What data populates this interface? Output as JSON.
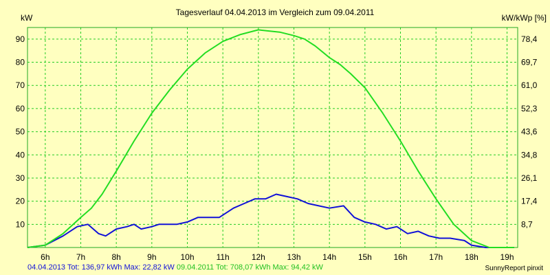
{
  "chart_data": {
    "type": "line",
    "title": "Tagesverlauf 04.04.2013 im Vergleich zum 09.04.2011",
    "ylabel_left": "kW",
    "ylabel_right": "kW/kWp [%]",
    "x_ticks": [
      "6h",
      "7h",
      "8h",
      "9h",
      "10h",
      "11h",
      "12h",
      "13h",
      "14h",
      "15h",
      "16h",
      "17h",
      "18h",
      "19h"
    ],
    "x_tick_values": [
      6,
      7,
      8,
      9,
      10,
      11,
      12,
      13,
      14,
      15,
      16,
      17,
      18,
      19
    ],
    "xlim": [
      5.5,
      19.3
    ],
    "ylim": [
      0,
      95
    ],
    "y_ticks_left": [
      "10",
      "20",
      "30",
      "40",
      "50",
      "60",
      "70",
      "80",
      "90"
    ],
    "y_tick_values_left": [
      10,
      20,
      30,
      40,
      50,
      60,
      70,
      80,
      90
    ],
    "y_ticks_right": [
      "8,7",
      "17,4",
      "26,1",
      "34,8",
      "43,6",
      "52,3",
      "61,0",
      "69,7",
      "78,4"
    ],
    "grid": true,
    "colors": {
      "background": "#ffffc0",
      "plot_background": "#ffffc0",
      "grid": "#22cc22",
      "series1": "#1010d8",
      "series2": "#22dd22"
    },
    "series": [
      {
        "name": "04.04.2013",
        "color": "#1010d8",
        "x": [
          5.5,
          6.0,
          6.5,
          6.9,
          7.2,
          7.5,
          7.7,
          8.0,
          8.3,
          8.5,
          8.7,
          9.0,
          9.2,
          9.5,
          9.7,
          10.0,
          10.3,
          10.6,
          10.9,
          11.3,
          11.6,
          11.9,
          12.2,
          12.5,
          12.8,
          13.1,
          13.4,
          13.7,
          14.0,
          14.4,
          14.7,
          15.0,
          15.3,
          15.6,
          15.9,
          16.2,
          16.5,
          16.8,
          17.1,
          17.4,
          17.8,
          18.0,
          18.4,
          18.7,
          19.0,
          19.2
        ],
        "y": [
          0,
          1,
          5,
          9,
          10,
          6,
          5,
          8,
          9,
          10,
          8,
          9,
          10,
          10,
          10,
          11,
          13,
          13,
          13,
          17,
          19,
          21,
          21,
          23,
          22,
          21,
          19,
          18,
          17,
          18,
          13,
          11,
          10,
          8,
          9,
          6,
          7,
          5,
          4,
          4,
          3,
          1,
          0,
          0,
          0,
          0
        ]
      },
      {
        "name": "09.04.2011",
        "color": "#22dd22",
        "x": [
          5.5,
          6.0,
          6.5,
          7.0,
          7.3,
          7.6,
          8.0,
          8.5,
          9.0,
          9.5,
          10.0,
          10.5,
          11.0,
          11.5,
          12.0,
          12.3,
          12.6,
          13.0,
          13.3,
          13.6,
          14.0,
          14.3,
          14.6,
          15.0,
          15.5,
          16.0,
          16.5,
          17.0,
          17.5,
          18.0,
          18.5,
          18.8,
          19.2
        ],
        "y": [
          0,
          1,
          6,
          13,
          17,
          23,
          33,
          46,
          58,
          68,
          77,
          84,
          89,
          92,
          94,
          93.5,
          93,
          91.5,
          90,
          87,
          82,
          79,
          75,
          69,
          58,
          46,
          33,
          21,
          10,
          3,
          0,
          0,
          0
        ]
      }
    ]
  },
  "footer": {
    "series1_text": "04.04.2013 Tot: 136,97 kWh Max: 22,82 kW",
    "series2_text": "09.04.2011 Tot: 708,07 kWh Max: 94,42 kW",
    "credit": "SunnyReport pinxit"
  }
}
